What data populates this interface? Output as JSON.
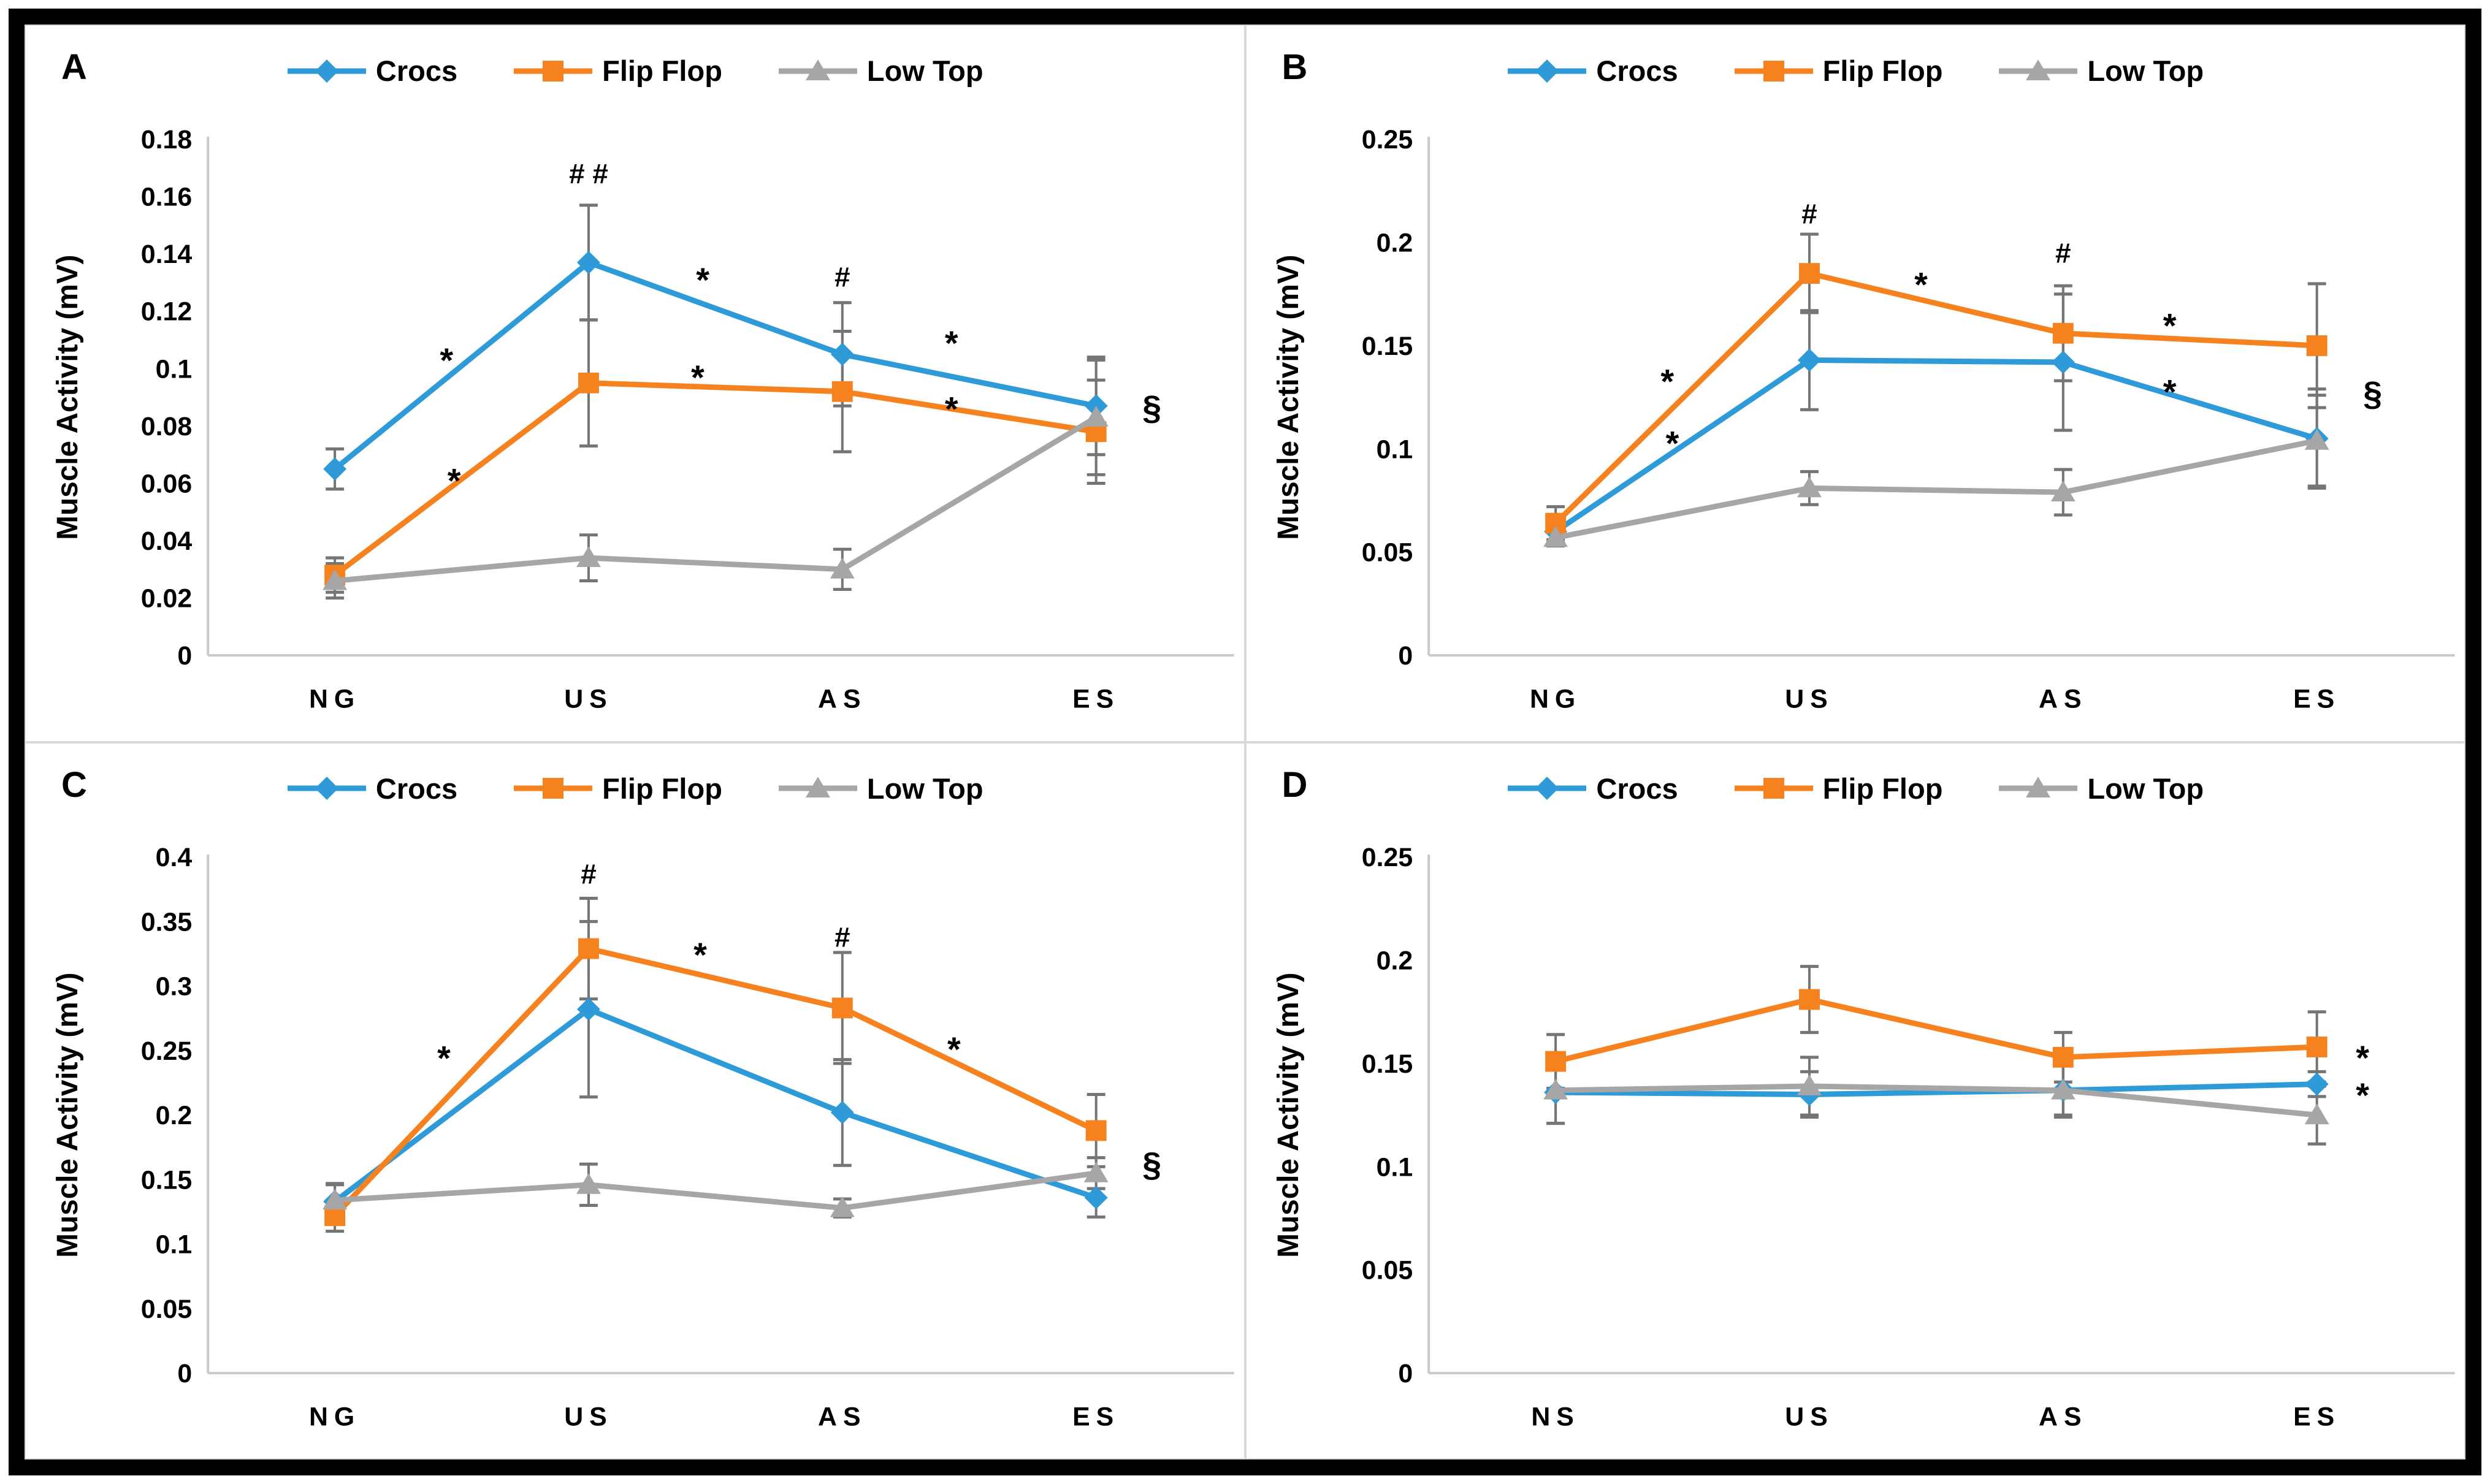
{
  "figure": {
    "background": "#ffffff",
    "frame_color": "#000000",
    "panel_border_color": "#d9d9d9"
  },
  "colors": {
    "crocs": "#2e9bd8",
    "flip_flop": "#f5821f",
    "low_top": "#a6a6a6",
    "error_bar": "#757575",
    "axis": "#c9c9c9",
    "text": "#000000"
  },
  "legend": {
    "items": [
      {
        "label": "Crocs",
        "marker": "diamond",
        "color": "#2e9bd8"
      },
      {
        "label": "Flip Flop",
        "marker": "square",
        "color": "#f5821f"
      },
      {
        "label": "Low Top",
        "marker": "triangle",
        "color": "#a6a6a6"
      }
    ]
  },
  "chart_data": [
    {
      "panel": "A",
      "type": "line",
      "ylabel": "Muscle Activity (mV)",
      "categories": [
        "NG",
        "US",
        "AS",
        "ES"
      ],
      "ylim": [
        0,
        0.18
      ],
      "ytick_labels": [
        "0",
        "0.02",
        "0.04",
        "0.06",
        "0.08",
        "0.1",
        "0.12",
        "0.14",
        "0.16",
        "0.18"
      ],
      "grid": false,
      "legend_position": "top",
      "series": [
        {
          "name": "Crocs",
          "marker": "diamond",
          "color": "#2e9bd8",
          "values": [
            0.065,
            0.137,
            0.105,
            0.087
          ],
          "errors": [
            0.007,
            0.02,
            0.018,
            0.017
          ]
        },
        {
          "name": "Flip Flop",
          "marker": "square",
          "color": "#f5821f",
          "values": [
            0.028,
            0.095,
            0.092,
            0.078
          ],
          "errors": [
            0.006,
            0.022,
            0.021,
            0.018
          ]
        },
        {
          "name": "Low Top",
          "marker": "triangle",
          "color": "#a6a6a6",
          "values": [
            0.026,
            0.034,
            0.03,
            0.083
          ],
          "errors": [
            0.006,
            0.008,
            0.007,
            0.02
          ]
        }
      ],
      "annotations": [
        {
          "text": "# #",
          "x": 1.0,
          "y": 0.168
        },
        {
          "text": "*",
          "x": 0.44,
          "y": 0.106
        },
        {
          "text": "*",
          "x": 0.47,
          "y": 0.064
        },
        {
          "text": "*",
          "x": 1.45,
          "y": 0.134
        },
        {
          "text": "*",
          "x": 1.43,
          "y": 0.1
        },
        {
          "text": "#",
          "x": 2.0,
          "y": 0.132
        },
        {
          "text": "*",
          "x": 2.43,
          "y": 0.112
        },
        {
          "text": "*",
          "x": 2.43,
          "y": 0.089
        },
        {
          "text": "§",
          "x": 3.22,
          "y": 0.0865
        }
      ]
    },
    {
      "panel": "B",
      "type": "line",
      "ylabel": "Muscle Activity (mV)",
      "categories": [
        "NG",
        "US",
        "AS",
        "ES"
      ],
      "ylim": [
        0,
        0.25
      ],
      "ytick_labels": [
        "0",
        "0.05",
        "0.1",
        "0.15",
        "0.2",
        "0.25"
      ],
      "grid": false,
      "legend_position": "top",
      "series": [
        {
          "name": "Crocs",
          "marker": "diamond",
          "color": "#2e9bd8",
          "values": [
            0.06,
            0.143,
            0.142,
            0.105
          ],
          "errors": [
            0.005,
            0.024,
            0.033,
            0.024
          ]
        },
        {
          "name": "Flip Flop",
          "marker": "square",
          "color": "#f5821f",
          "values": [
            0.064,
            0.185,
            0.156,
            0.15
          ],
          "errors": [
            0.008,
            0.019,
            0.023,
            0.03
          ]
        },
        {
          "name": "Low Top",
          "marker": "triangle",
          "color": "#a6a6a6",
          "values": [
            0.057,
            0.081,
            0.079,
            0.104
          ],
          "errors": [
            0.004,
            0.008,
            0.011,
            0.022
          ]
        }
      ],
      "annotations": [
        {
          "text": "#",
          "x": 1.0,
          "y": 0.214
        },
        {
          "text": "*",
          "x": 0.44,
          "y": 0.137
        },
        {
          "text": "*",
          "x": 0.46,
          "y": 0.107
        },
        {
          "text": "*",
          "x": 1.44,
          "y": 0.184
        },
        {
          "text": "#",
          "x": 2.0,
          "y": 0.195
        },
        {
          "text": "*",
          "x": 2.42,
          "y": 0.164
        },
        {
          "text": "*",
          "x": 2.42,
          "y": 0.132
        },
        {
          "text": "§",
          "x": 3.22,
          "y": 0.127
        }
      ]
    },
    {
      "panel": "C",
      "type": "line",
      "ylabel": "Muscle Activity (mV)",
      "categories": [
        "NG",
        "US",
        "AS",
        "ES"
      ],
      "ylim": [
        0,
        0.4
      ],
      "ytick_labels": [
        "0",
        "0.05",
        "0.1",
        "0.15",
        "0.2",
        "0.25",
        "0.3",
        "0.35",
        "0.4"
      ],
      "grid": false,
      "legend_position": "top",
      "series": [
        {
          "name": "Crocs",
          "marker": "diamond",
          "color": "#2e9bd8",
          "values": [
            0.133,
            0.282,
            0.202,
            0.136
          ],
          "errors": [
            0.013,
            0.068,
            0.041,
            0.015
          ]
        },
        {
          "name": "Flip Flop",
          "marker": "square",
          "color": "#f5821f",
          "values": [
            0.122,
            0.329,
            0.283,
            0.188
          ],
          "errors": [
            0.012,
            0.039,
            0.043,
            0.028
          ]
        },
        {
          "name": "Low Top",
          "marker": "triangle",
          "color": "#a6a6a6",
          "values": [
            0.134,
            0.146,
            0.128,
            0.155
          ],
          "errors": [
            0.013,
            0.016,
            0.007,
            0.012
          ]
        }
      ],
      "annotations": [
        {
          "text": "#",
          "x": 1.0,
          "y": 0.387
        },
        {
          "text": "*",
          "x": 0.43,
          "y": 0.251
        },
        {
          "text": "*",
          "x": 1.44,
          "y": 0.331
        },
        {
          "text": "#",
          "x": 2.0,
          "y": 0.338
        },
        {
          "text": "*",
          "x": 2.44,
          "y": 0.258
        },
        {
          "text": "§",
          "x": 3.22,
          "y": 0.162
        }
      ]
    },
    {
      "panel": "D",
      "type": "line",
      "ylabel": "Muscle Activity (mV)",
      "categories": [
        "NS",
        "US",
        "AS",
        "ES"
      ],
      "ylim": [
        0,
        0.25
      ],
      "ytick_labels": [
        "0",
        "0.05",
        "0.1",
        "0.15",
        "0.2",
        "0.25"
      ],
      "grid": false,
      "legend_position": "top",
      "series": [
        {
          "name": "Crocs",
          "marker": "diamond",
          "color": "#2e9bd8",
          "values": [
            0.136,
            0.135,
            0.137,
            0.14
          ],
          "errors": [
            0.015,
            0.011,
            0.012,
            0.006
          ]
        },
        {
          "name": "Flip Flop",
          "marker": "square",
          "color": "#f5821f",
          "values": [
            0.151,
            0.181,
            0.153,
            0.158
          ],
          "errors": [
            0.013,
            0.016,
            0.012,
            0.017
          ]
        },
        {
          "name": "Low Top",
          "marker": "triangle",
          "color": "#a6a6a6",
          "values": [
            0.137,
            0.139,
            0.137,
            0.125
          ],
          "errors": [
            0.016,
            0.014,
            0.013,
            0.014
          ]
        }
      ],
      "annotations": [
        {
          "text": "*",
          "x": 3.18,
          "y": 0.157
        },
        {
          "text": "*",
          "x": 3.18,
          "y": 0.139
        }
      ]
    }
  ]
}
